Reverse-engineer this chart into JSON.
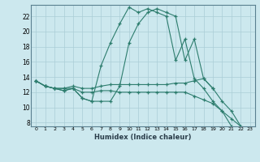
{
  "xlabel": "Humidex (Indice chaleur)",
  "bg_color": "#cce8ee",
  "grid_color": "#aacdd6",
  "line_color": "#2d7d6e",
  "xlim": [
    -0.5,
    23.5
  ],
  "ylim": [
    7.5,
    23.5
  ],
  "yticks": [
    8,
    10,
    12,
    14,
    16,
    18,
    20,
    22
  ],
  "xticks": [
    0,
    1,
    2,
    3,
    4,
    5,
    6,
    7,
    8,
    9,
    10,
    11,
    12,
    13,
    14,
    15,
    16,
    17,
    18,
    19,
    20,
    21,
    22,
    23
  ],
  "series": [
    {
      "x": [
        0,
        1,
        2,
        3,
        4,
        5,
        6,
        7,
        8,
        9,
        10,
        11,
        12,
        13,
        14,
        15,
        16,
        17,
        18,
        19,
        20,
        21,
        22,
        23
      ],
      "y": [
        13.5,
        12.8,
        12.5,
        12.2,
        12.5,
        11.2,
        10.8,
        15.5,
        18.5,
        21.0,
        23.2,
        22.5,
        23.0,
        22.5,
        22.0,
        16.2,
        19.0,
        13.8,
        12.5,
        10.8,
        9.5,
        7.5,
        null,
        null
      ]
    },
    {
      "x": [
        0,
        1,
        2,
        3,
        4,
        5,
        6,
        7,
        8,
        9,
        10,
        11,
        12,
        13,
        14,
        15,
        16,
        17,
        18,
        19,
        20
      ],
      "y": [
        13.5,
        12.8,
        12.5,
        12.5,
        12.8,
        12.5,
        12.5,
        12.8,
        13.0,
        13.0,
        13.0,
        13.0,
        13.0,
        13.0,
        13.0,
        13.2,
        13.2,
        13.5,
        13.8,
        12.5,
        null
      ]
    },
    {
      "x": [
        0,
        1,
        2,
        3,
        4,
        5,
        6,
        7,
        8,
        9,
        10,
        11,
        12,
        13,
        14,
        15,
        16,
        17,
        18,
        19,
        20,
        21,
        22,
        23
      ],
      "y": [
        13.5,
        12.8,
        12.5,
        12.2,
        12.5,
        11.2,
        10.8,
        10.8,
        10.8,
        12.8,
        18.5,
        21.0,
        22.5,
        23.0,
        22.5,
        22.0,
        16.2,
        19.0,
        13.8,
        12.5,
        10.8,
        9.5,
        7.5,
        null
      ]
    },
    {
      "x": [
        0,
        1,
        2,
        3,
        4,
        5,
        6,
        7,
        8,
        9,
        10,
        11,
        12,
        13,
        14,
        15,
        16,
        17,
        18,
        19,
        20,
        21,
        22,
        23
      ],
      "y": [
        13.5,
        12.8,
        12.5,
        12.5,
        12.5,
        12.0,
        12.0,
        12.2,
        12.2,
        12.0,
        12.0,
        12.0,
        12.0,
        12.0,
        12.0,
        12.0,
        12.0,
        11.5,
        11.0,
        10.5,
        9.5,
        8.5,
        7.5,
        null
      ]
    }
  ]
}
